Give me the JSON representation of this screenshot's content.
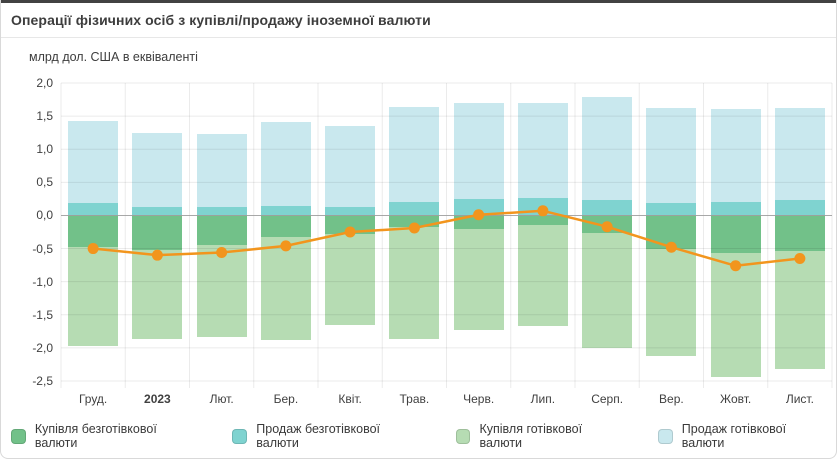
{
  "header": {
    "title": "Операції фізичних осіб з купівлі/продажу іноземної валюти"
  },
  "colors": {
    "accent_top": "#424242",
    "grid": "#e3e3e3",
    "zero_line": "#9e9e9e",
    "buy_cashless": "#72c189",
    "sell_cashless": "#7fd3d0",
    "buy_cash": "#b6dcb3",
    "sell_cash": "#c9e8ee",
    "line": "#f2951d"
  },
  "chart_data": {
    "type": "bar",
    "stacked": true,
    "title": "Операції фізичних осіб з купівлі/продажу іноземної валюти",
    "unit_label": "млрд дол. США в еквіваленті",
    "categories": [
      "Груд.",
      "2023",
      "Лют.",
      "Бер.",
      "Квіт.",
      "Трав.",
      "Черв.",
      "Лип.",
      "Серп.",
      "Вер.",
      "Жовт.",
      "Лист."
    ],
    "bold_category": "2023",
    "y_ticks": [
      "2,0",
      "1,5",
      "1,0",
      "0,5",
      "0,0",
      "-0,5",
      "-1,0",
      "-1,5",
      "-2,0",
      "-2,5"
    ],
    "ylim": [
      -2.5,
      2.0
    ],
    "grid": true,
    "legend_position": "bottom",
    "series": [
      {
        "name": "Купівля безготівкової валюти",
        "color": "#72c189",
        "values": [
          -0.47,
          -0.52,
          -0.45,
          -0.32,
          -0.28,
          -0.17,
          -0.2,
          -0.14,
          -0.27,
          -0.5,
          -0.57,
          -0.54
        ]
      },
      {
        "name": "Продаж безготівкової валюти",
        "color": "#7fd3d0",
        "values": [
          0.19,
          0.12,
          0.13,
          0.15,
          0.12,
          0.21,
          0.25,
          0.26,
          0.23,
          0.19,
          0.21,
          0.23
        ]
      },
      {
        "name": "Купівля готівкової валюти",
        "color": "#b6dcb3",
        "values": [
          -1.5,
          -1.35,
          -1.38,
          -1.56,
          -1.38,
          -1.69,
          -1.53,
          -1.53,
          -1.73,
          -1.62,
          -1.87,
          -1.78
        ]
      },
      {
        "name": "Продаж готівкової валюти",
        "color": "#c9e8ee",
        "values": [
          1.24,
          1.13,
          1.1,
          1.26,
          1.23,
          1.43,
          1.45,
          1.44,
          1.56,
          1.43,
          1.4,
          1.4
        ]
      }
    ],
    "line": {
      "color": "#f2951d",
      "values": [
        -0.5,
        -0.6,
        -0.56,
        -0.46,
        -0.25,
        -0.19,
        0.01,
        0.07,
        -0.17,
        -0.48,
        -0.76,
        -0.65
      ]
    }
  }
}
